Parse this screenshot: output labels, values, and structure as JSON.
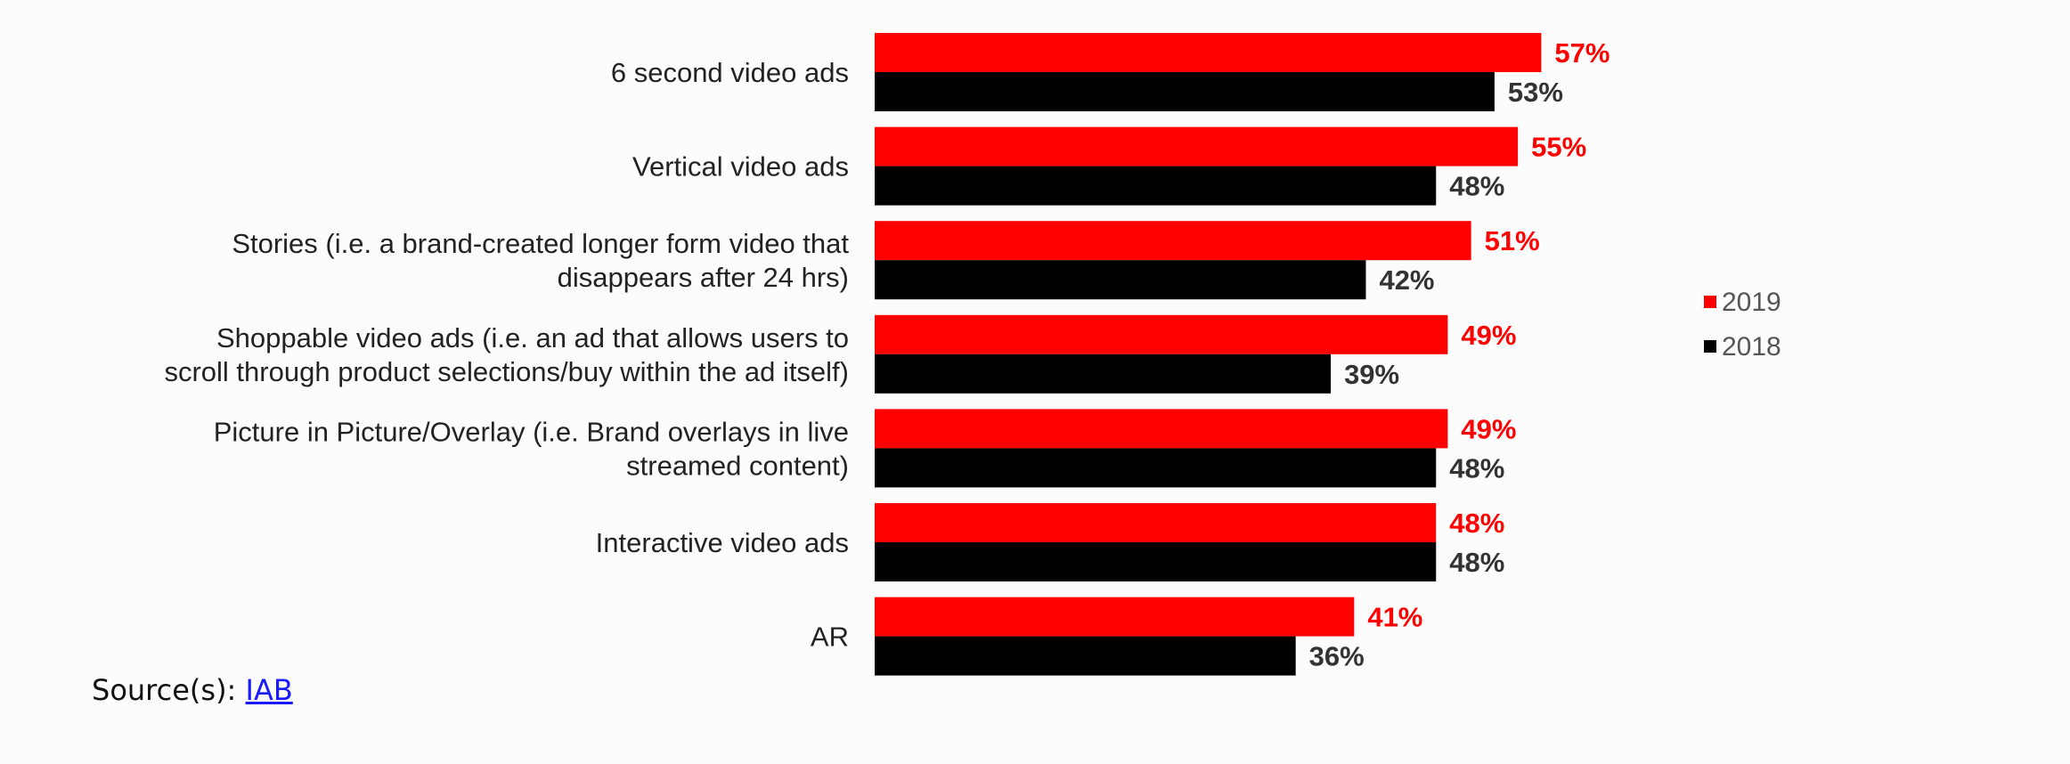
{
  "chart_data": {
    "type": "bar",
    "orientation": "horizontal",
    "categories": [
      [
        "6 second video ads"
      ],
      [
        "Vertical video ads"
      ],
      [
        "Stories (i.e. a brand-created longer form video that",
        "disappears after 24 hrs)"
      ],
      [
        "Shoppable video ads (i.e. an ad that allows users to",
        "scroll through product selections/buy within the ad itself)"
      ],
      [
        "Picture in Picture/Overlay (i.e. Brand overlays in live",
        "streamed content)"
      ],
      [
        "Interactive video ads"
      ],
      [
        "AR"
      ]
    ],
    "series": [
      {
        "name": "2019",
        "color": "#ff0000",
        "label_color": "#ff0000",
        "values": [
          57,
          55,
          51,
          49,
          49,
          48,
          41
        ],
        "labels": [
          "57%",
          "55%",
          "51%",
          "49%",
          "49%",
          "48%",
          "41%"
        ]
      },
      {
        "name": "2018",
        "color": "#000000",
        "label_color": "#333333",
        "values": [
          53,
          48,
          42,
          39,
          48,
          48,
          36
        ],
        "labels": [
          "53%",
          "48%",
          "42%",
          "39%",
          "48%",
          "48%",
          "36%"
        ]
      }
    ],
    "legend_position": "right",
    "grid": false
  },
  "source": {
    "prefix": "Source(s): ",
    "link_text": "IAB"
  }
}
